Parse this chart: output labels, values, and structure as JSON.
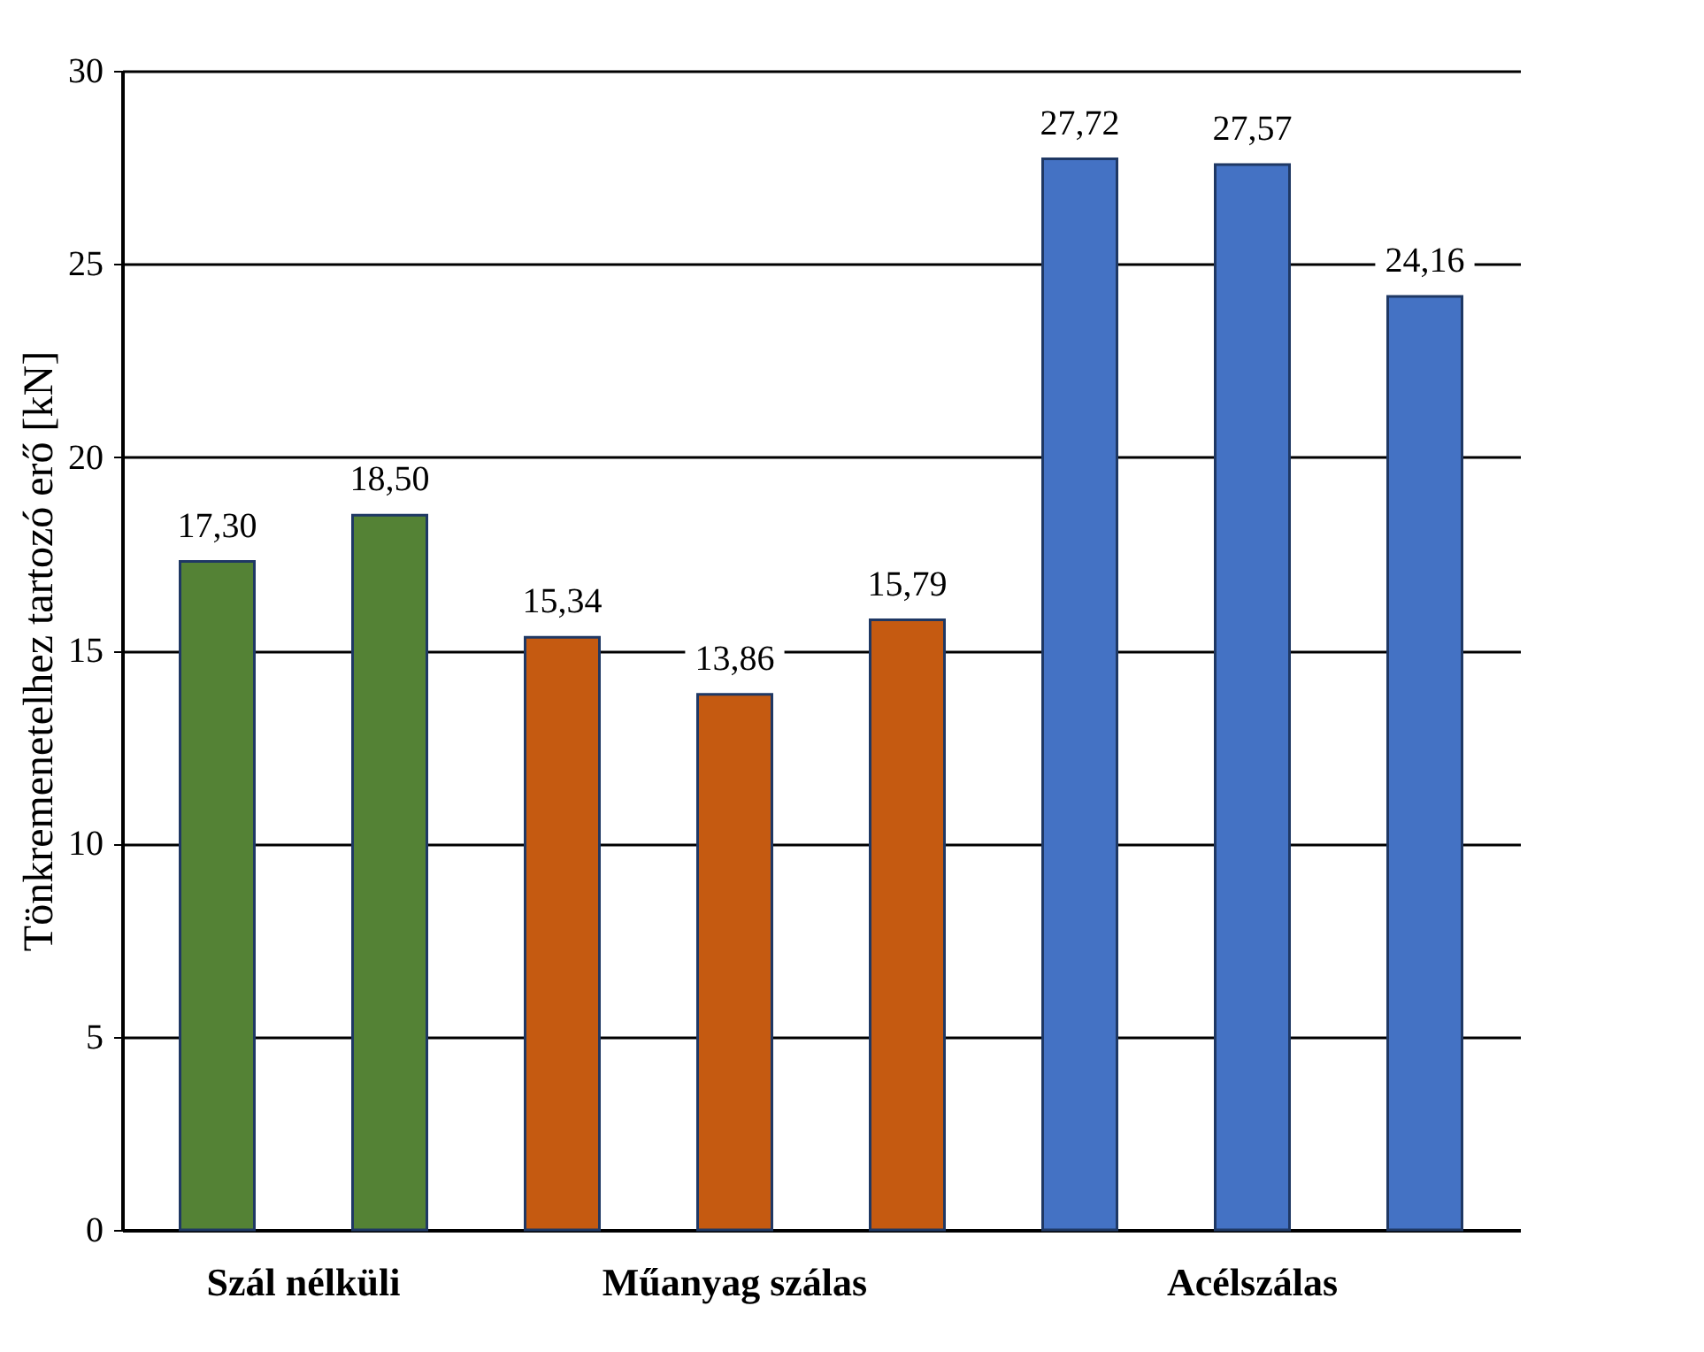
{
  "chart_data": {
    "type": "bar",
    "ylabel": "Tönkremenetelhez tartozó erő  [kN]",
    "categories": [
      null,
      null,
      null,
      null,
      null,
      null,
      null,
      null
    ],
    "values": [
      17.3,
      18.5,
      15.34,
      13.86,
      15.79,
      27.72,
      27.57,
      24.16
    ],
    "value_labels": [
      "17,30",
      "18,50",
      "15,34",
      "13,86",
      "15,79",
      "27,72",
      "27,57",
      "24,16"
    ],
    "colors": [
      "#548235",
      "#548235",
      "#c55a11",
      "#c55a11",
      "#c55a11",
      "#4472c4",
      "#4472c4",
      "#4472c4"
    ],
    "annotations": [
      "Szál nélküli",
      "Műanyag szálas",
      "Acélszálas"
    ],
    "ylim": [
      0,
      30
    ],
    "yticks": [
      0,
      5,
      10,
      15,
      20,
      25,
      30
    ],
    "grid": "y"
  }
}
